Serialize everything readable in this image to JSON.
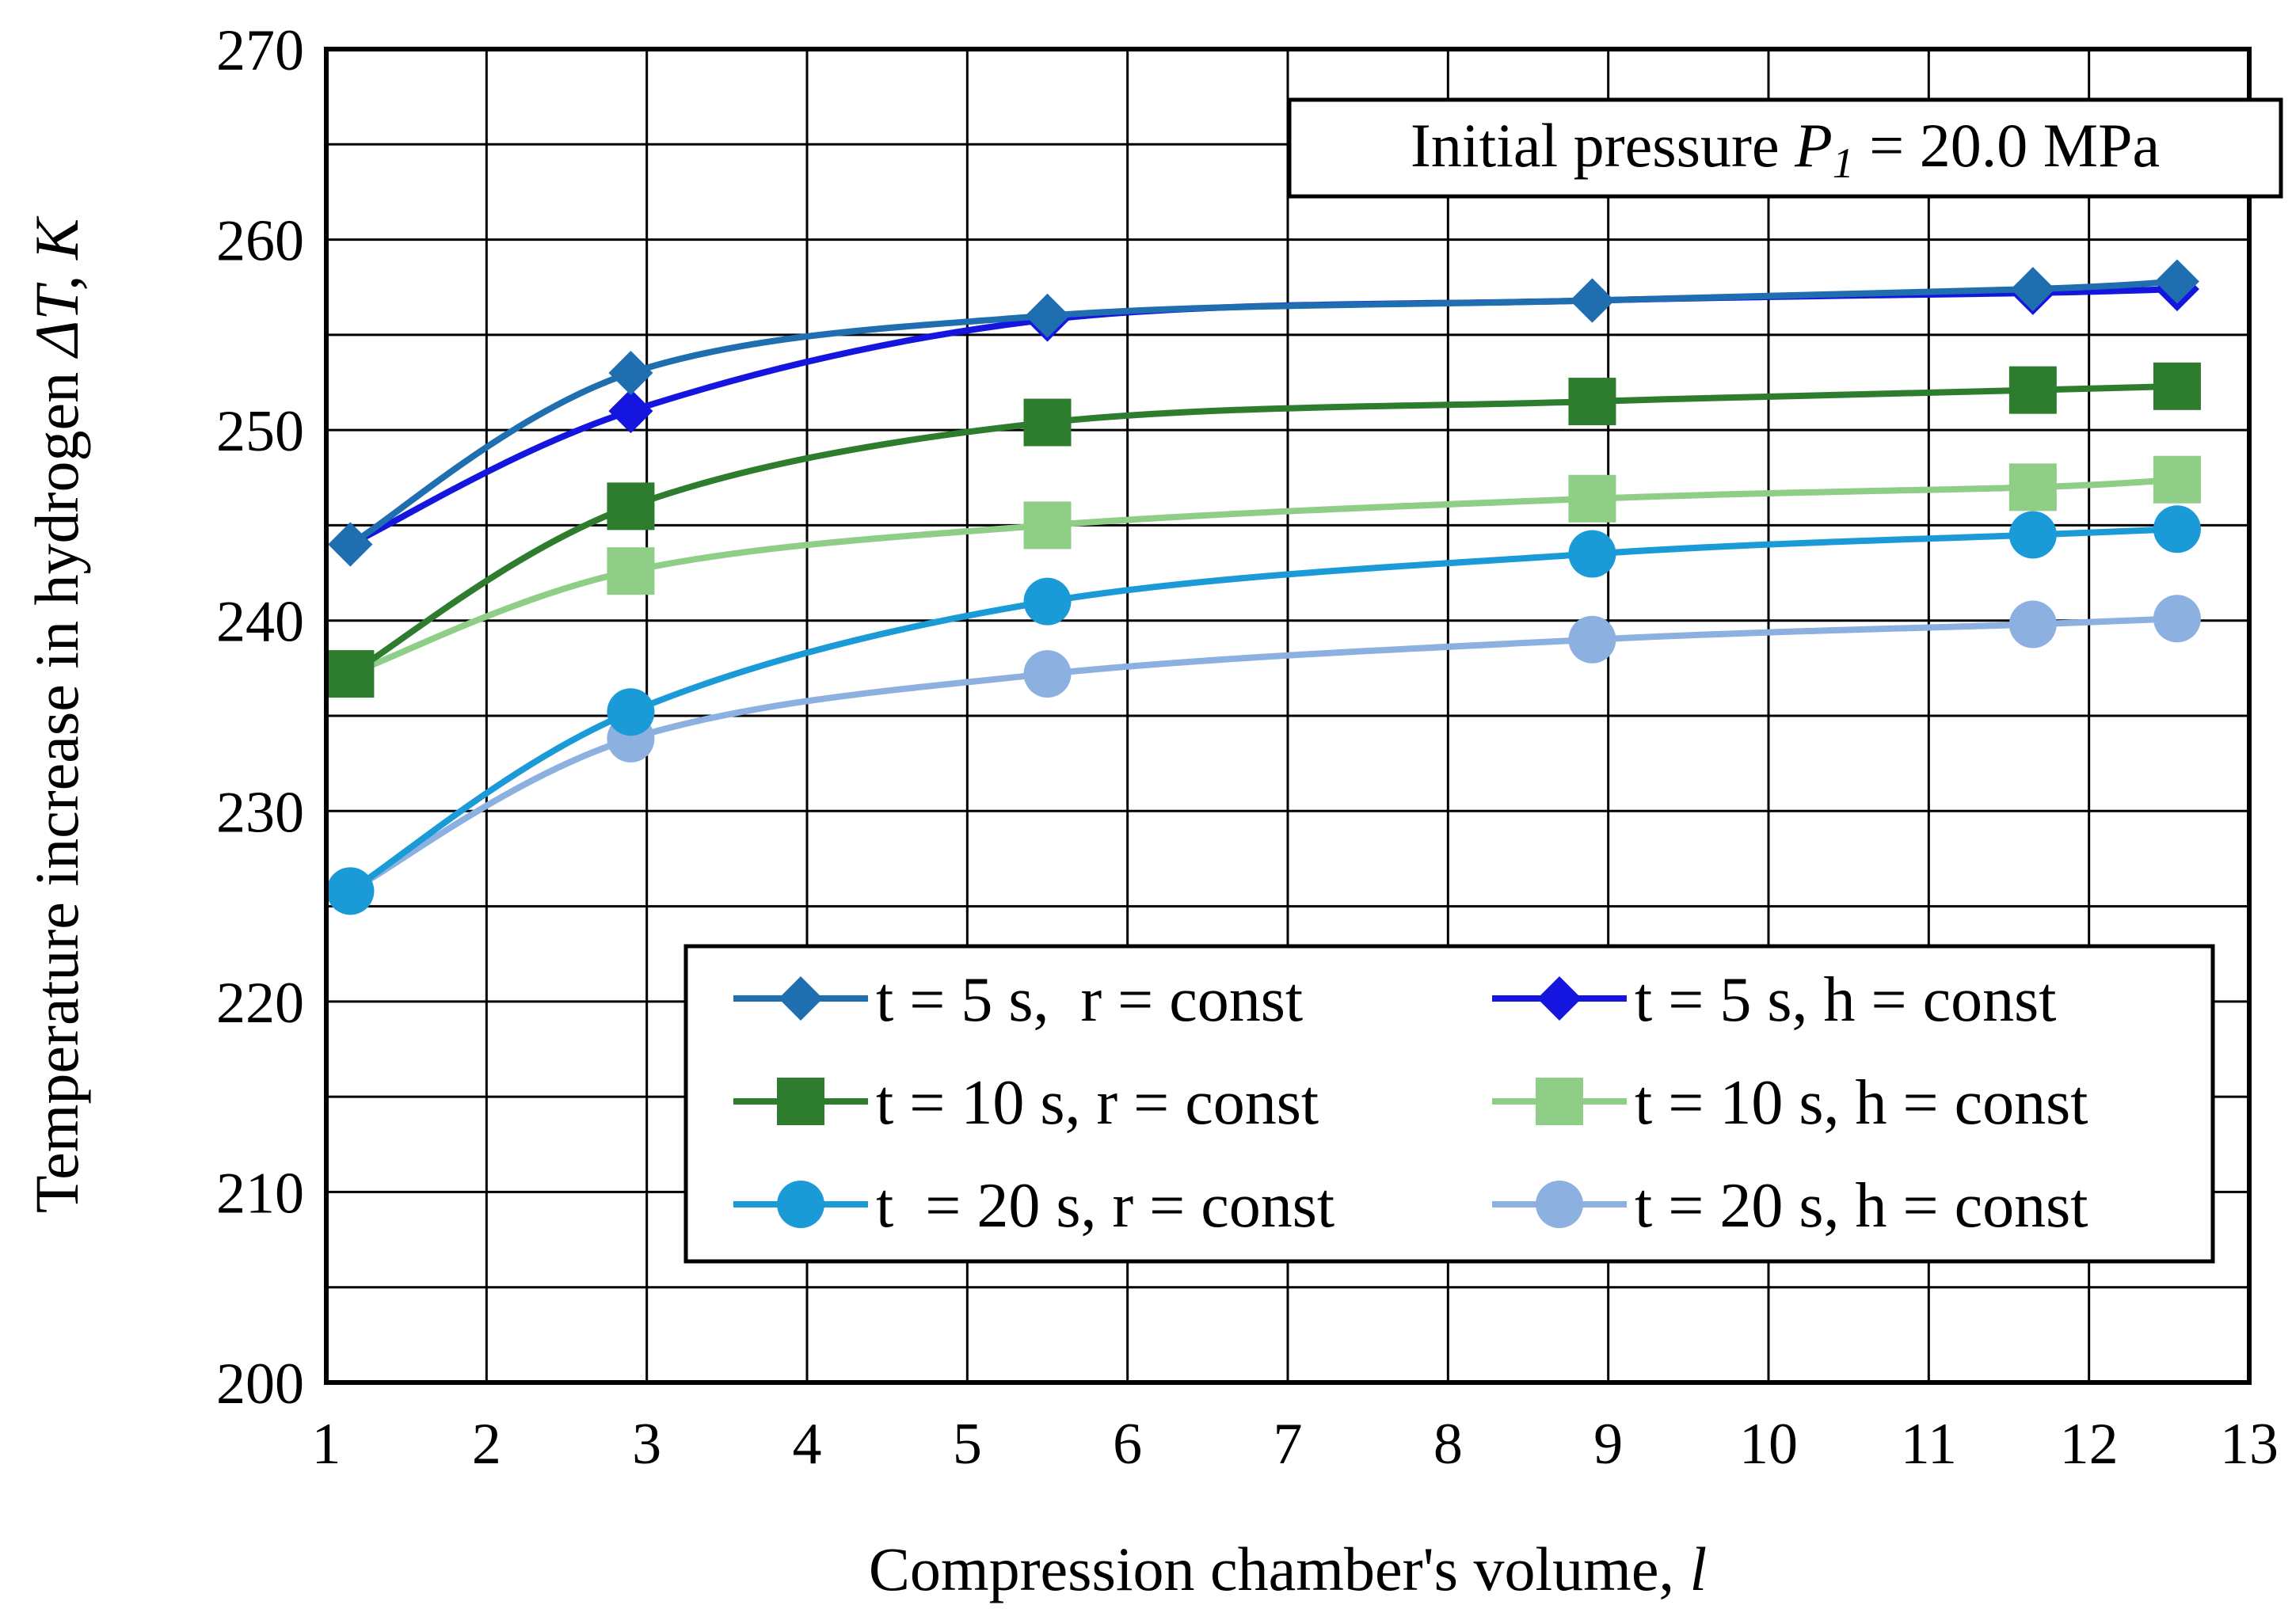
{
  "chart_data": {
    "type": "line",
    "xlabel": "Compression chamber's volume, ",
    "xlabel_unit": "l",
    "ylabel": "Temperature increase in hydrogen ",
    "ylabel_symbol": "ΔT, K",
    "xlim": [
      1,
      13
    ],
    "ylim": [
      200,
      270
    ],
    "xticks": [
      "1",
      "2",
      "3",
      "4",
      "5",
      "6",
      "7",
      "8",
      "9",
      "10",
      "11",
      "12",
      "13"
    ],
    "yticks": [
      "200",
      "210",
      "220",
      "230",
      "240",
      "250",
      "260",
      "270"
    ],
    "grid": true,
    "annotation": {
      "prefix": "Initial pressure ",
      "symbol": "P",
      "subscript": "1",
      "suffix": " = 20.0 MPa"
    },
    "legend_position": "bottom-right",
    "series": [
      {
        "name": "t = 5 s,  r = const",
        "color": "#1f6fb0",
        "marker": "diamond",
        "x": [
          1.15,
          2.9,
          5.5,
          8.9,
          11.65,
          12.55
        ],
        "values": [
          244.0,
          253.0,
          256.0,
          256.8,
          257.4,
          257.8
        ]
      },
      {
        "name": "t = 5 s, h = const",
        "color": "#1515e0",
        "marker": "diamond",
        "x": [
          1.15,
          2.9,
          5.5,
          8.9,
          11.65,
          12.55
        ],
        "values": [
          244.0,
          251.0,
          255.8,
          256.8,
          257.2,
          257.4
        ]
      },
      {
        "name": "t = 10 s, r = const",
        "color": "#2e7d2e",
        "marker": "square",
        "x": [
          1.15,
          2.9,
          5.5,
          8.9,
          11.65,
          12.55
        ],
        "values": [
          237.2,
          246.0,
          250.4,
          251.5,
          252.1,
          252.3
        ]
      },
      {
        "name": "t = 10 s, h = const",
        "color": "#8fce86",
        "marker": "square",
        "x": [
          1.15,
          2.9,
          5.5,
          8.9,
          11.65,
          12.55
        ],
        "values": [
          237.2,
          242.6,
          245.0,
          246.4,
          247.0,
          247.4
        ]
      },
      {
        "name": "t  = 20 s, r = const",
        "color": "#1b9ad8",
        "marker": "circle",
        "x": [
          1.15,
          2.9,
          5.5,
          8.9,
          11.65,
          12.55
        ],
        "values": [
          225.8,
          235.2,
          241.0,
          243.5,
          244.5,
          244.8
        ]
      },
      {
        "name": "t = 20 s, h = const",
        "color": "#8cb0e0",
        "marker": "circle",
        "x": [
          1.15,
          2.9,
          5.5,
          8.9,
          11.65,
          12.55
        ],
        "values": [
          225.8,
          233.8,
          237.2,
          239.0,
          239.8,
          240.1
        ]
      }
    ]
  }
}
